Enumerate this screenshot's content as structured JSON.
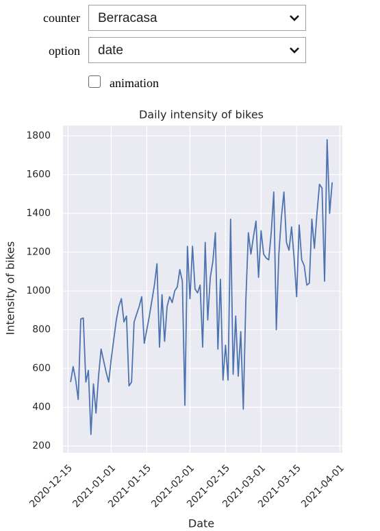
{
  "controls": {
    "counter_label": "counter",
    "counter_value": "Berracasa",
    "option_label": "option",
    "option_value": "date",
    "animation_label": "animation"
  },
  "chart_data": {
    "type": "line",
    "title": "Daily intensity of bikes",
    "x_label": "Date",
    "y_label": "Intensity of bikes",
    "x": [
      "2020-12-16",
      "2020-12-17",
      "2020-12-18",
      "2020-12-19",
      "2020-12-20",
      "2020-12-21",
      "2020-12-22",
      "2020-12-23",
      "2020-12-24",
      "2020-12-25",
      "2020-12-26",
      "2020-12-27",
      "2020-12-28",
      "2020-12-29",
      "2020-12-30",
      "2020-12-31",
      "2021-01-01",
      "2021-01-02",
      "2021-01-03",
      "2021-01-04",
      "2021-01-05",
      "2021-01-06",
      "2021-01-07",
      "2021-01-08",
      "2021-01-09",
      "2021-01-10",
      "2021-01-11",
      "2021-01-12",
      "2021-01-13",
      "2021-01-14",
      "2021-01-15",
      "2021-01-16",
      "2021-01-17",
      "2021-01-18",
      "2021-01-19",
      "2021-01-20",
      "2021-01-21",
      "2021-01-22",
      "2021-01-23",
      "2021-01-24",
      "2021-01-25",
      "2021-01-26",
      "2021-01-27",
      "2021-01-28",
      "2021-01-29",
      "2021-01-30",
      "2021-01-31",
      "2021-02-01",
      "2021-02-02",
      "2021-02-03",
      "2021-02-04",
      "2021-02-05",
      "2021-02-06",
      "2021-02-07",
      "2021-02-08",
      "2021-02-09",
      "2021-02-10",
      "2021-02-11",
      "2021-02-12",
      "2021-02-13",
      "2021-02-14",
      "2021-02-15",
      "2021-02-16",
      "2021-02-17",
      "2021-02-18",
      "2021-02-19",
      "2021-02-20",
      "2021-02-21",
      "2021-02-22",
      "2021-02-23",
      "2021-02-24",
      "2021-02-25",
      "2021-02-26",
      "2021-02-27",
      "2021-02-28",
      "2021-03-01",
      "2021-03-02",
      "2021-03-03",
      "2021-03-04",
      "2021-03-05",
      "2021-03-06",
      "2021-03-07",
      "2021-03-08",
      "2021-03-09",
      "2021-03-10",
      "2021-03-11",
      "2021-03-12",
      "2021-03-13",
      "2021-03-14",
      "2021-03-15",
      "2021-03-16",
      "2021-03-17",
      "2021-03-18",
      "2021-03-19",
      "2021-03-20",
      "2021-03-21",
      "2021-03-22",
      "2021-03-23",
      "2021-03-24",
      "2021-03-25",
      "2021-03-26",
      "2021-03-27",
      "2021-03-28",
      "2021-03-29"
    ],
    "series": [
      {
        "name": "Berracasa",
        "color": "#4c72b0",
        "values": [
          530,
          610,
          540,
          440,
          855,
          860,
          530,
          590,
          260,
          520,
          370,
          560,
          700,
          640,
          580,
          530,
          650,
          750,
          850,
          920,
          960,
          840,
          870,
          510,
          530,
          840,
          880,
          920,
          970,
          730,
          800,
          870,
          950,
          1030,
          1140,
          710,
          980,
          740,
          920,
          970,
          940,
          1000,
          1020,
          1110,
          1050,
          410,
          1230,
          960,
          1230,
          1010,
          990,
          1030,
          710,
          1250,
          850,
          1070,
          1150,
          1300,
          700,
          1060,
          540,
          720,
          540,
          1370,
          570,
          870,
          560,
          790,
          390,
          950,
          1300,
          1190,
          1280,
          1360,
          1070,
          1310,
          1190,
          1170,
          1160,
          1300,
          1510,
          800,
          1190,
          1380,
          1510,
          1250,
          1210,
          1330,
          1170,
          970,
          1340,
          1160,
          1130,
          1030,
          1040,
          1370,
          1220,
          1400,
          1550,
          1530,
          1050,
          1780,
          1400,
          1560
        ]
      }
    ],
    "xlim": [
      "2020-12-13",
      "2021-04-02"
    ],
    "xticks": [
      "2020-12-15",
      "2021-01-01",
      "2021-01-15",
      "2021-02-01",
      "2021-02-15",
      "2021-03-01",
      "2021-03-15",
      "2021-04-01"
    ],
    "ylim": [
      165,
      1853
    ],
    "yticks": [
      200,
      400,
      600,
      800,
      1000,
      1200,
      1400,
      1600,
      1800
    ],
    "grid": true,
    "background": "#eaeaf2"
  }
}
